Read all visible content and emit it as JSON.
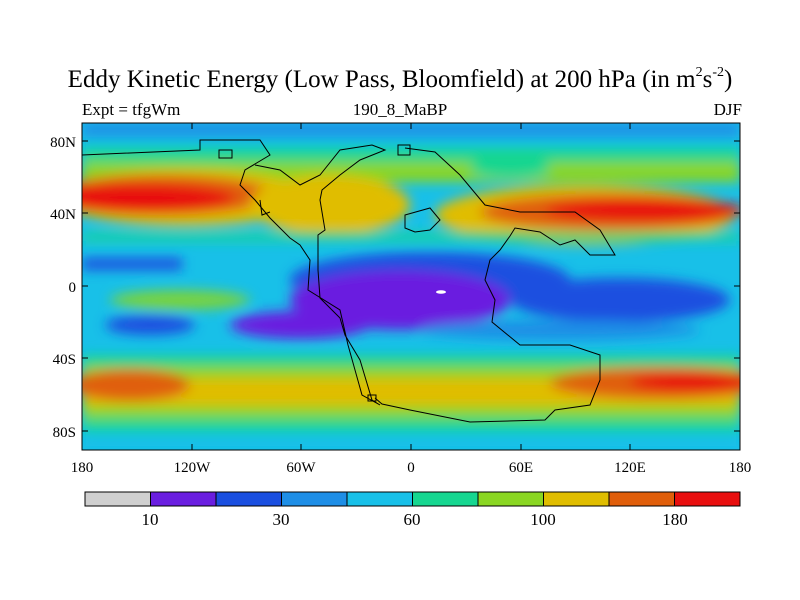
{
  "title": {
    "main": "Eddy Kinetic Energy (Low Pass, Bloomfield) at 200 hPa (in m",
    "sup1": "2",
    "mid": "s",
    "sup2": "-2",
    "end": ")"
  },
  "subheaders": {
    "experiment": "Expt = tfgWm",
    "code": "190_8_MaBP",
    "season": "DJF"
  },
  "axes": {
    "y_ticks": [
      "80N",
      "40N",
      "0",
      "40S",
      "80S"
    ],
    "x_ticks": [
      "180",
      "120W",
      "60W",
      "0",
      "60E",
      "120E",
      "180"
    ]
  },
  "colorbar": {
    "colors": [
      "#cfcfcf",
      "#6a1ee0",
      "#1a4fe0",
      "#1e8ee6",
      "#18c0e8",
      "#16d690",
      "#8ad622",
      "#e0bd00",
      "#e05e0a",
      "#e80e0e"
    ],
    "labels": [
      "10",
      "30",
      "60",
      "100",
      "180"
    ]
  },
  "palette": {
    "violet": "#6a1ee0",
    "blue": "#1a4fe0",
    "mid_blue": "#1e8ee6",
    "cyan": "#18c0e8",
    "teal": "#16d690",
    "green": "#8ad622",
    "yellow": "#e0bd00",
    "orange": "#e05e0a",
    "red": "#e80e0e"
  }
}
